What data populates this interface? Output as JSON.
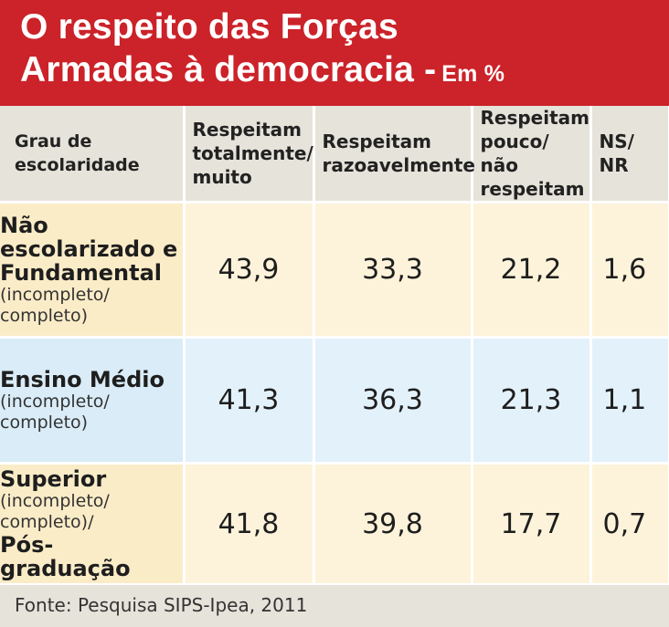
{
  "header": {
    "title_line1": "O respeito das Forças",
    "title_line2": "Armadas à democracia -",
    "unit": "Em %"
  },
  "colors": {
    "header_bg": "#cc2229",
    "header_text": "#ffffff",
    "column_header_bg": "#e6e3da",
    "row_beige": "#fbecc8",
    "row_blue": "#d9ecf7"
  },
  "chart_data": {
    "type": "table",
    "title": "O respeito das Forças Armadas à democracia - Em %",
    "columns": [
      "Grau de escolaridade",
      "Respeitam totalmente/ muito",
      "Respeitam razoavelmente",
      "Respeitam pouco/ não respeitam",
      "NS/ NR"
    ],
    "rows": [
      {
        "name": "Não escolarizado e Fundamental",
        "detail": "(incompleto/ completo)",
        "values": [
          "43,9",
          "33,3",
          "21,2",
          "1,6"
        ]
      },
      {
        "name": "Ensino Médio",
        "detail": "(incompleto/ completo)",
        "values": [
          "41,3",
          "36,3",
          "21,3",
          "1,1"
        ]
      },
      {
        "name": "Superior",
        "detail": "(incompleto/ completo)/",
        "name_suffix": "Pós-graduação",
        "values": [
          "41,8",
          "39,8",
          "17,7",
          "0,7"
        ]
      }
    ]
  },
  "footer": {
    "source": "Fonte: Pesquisa SIPS-Ipea, 2011"
  }
}
